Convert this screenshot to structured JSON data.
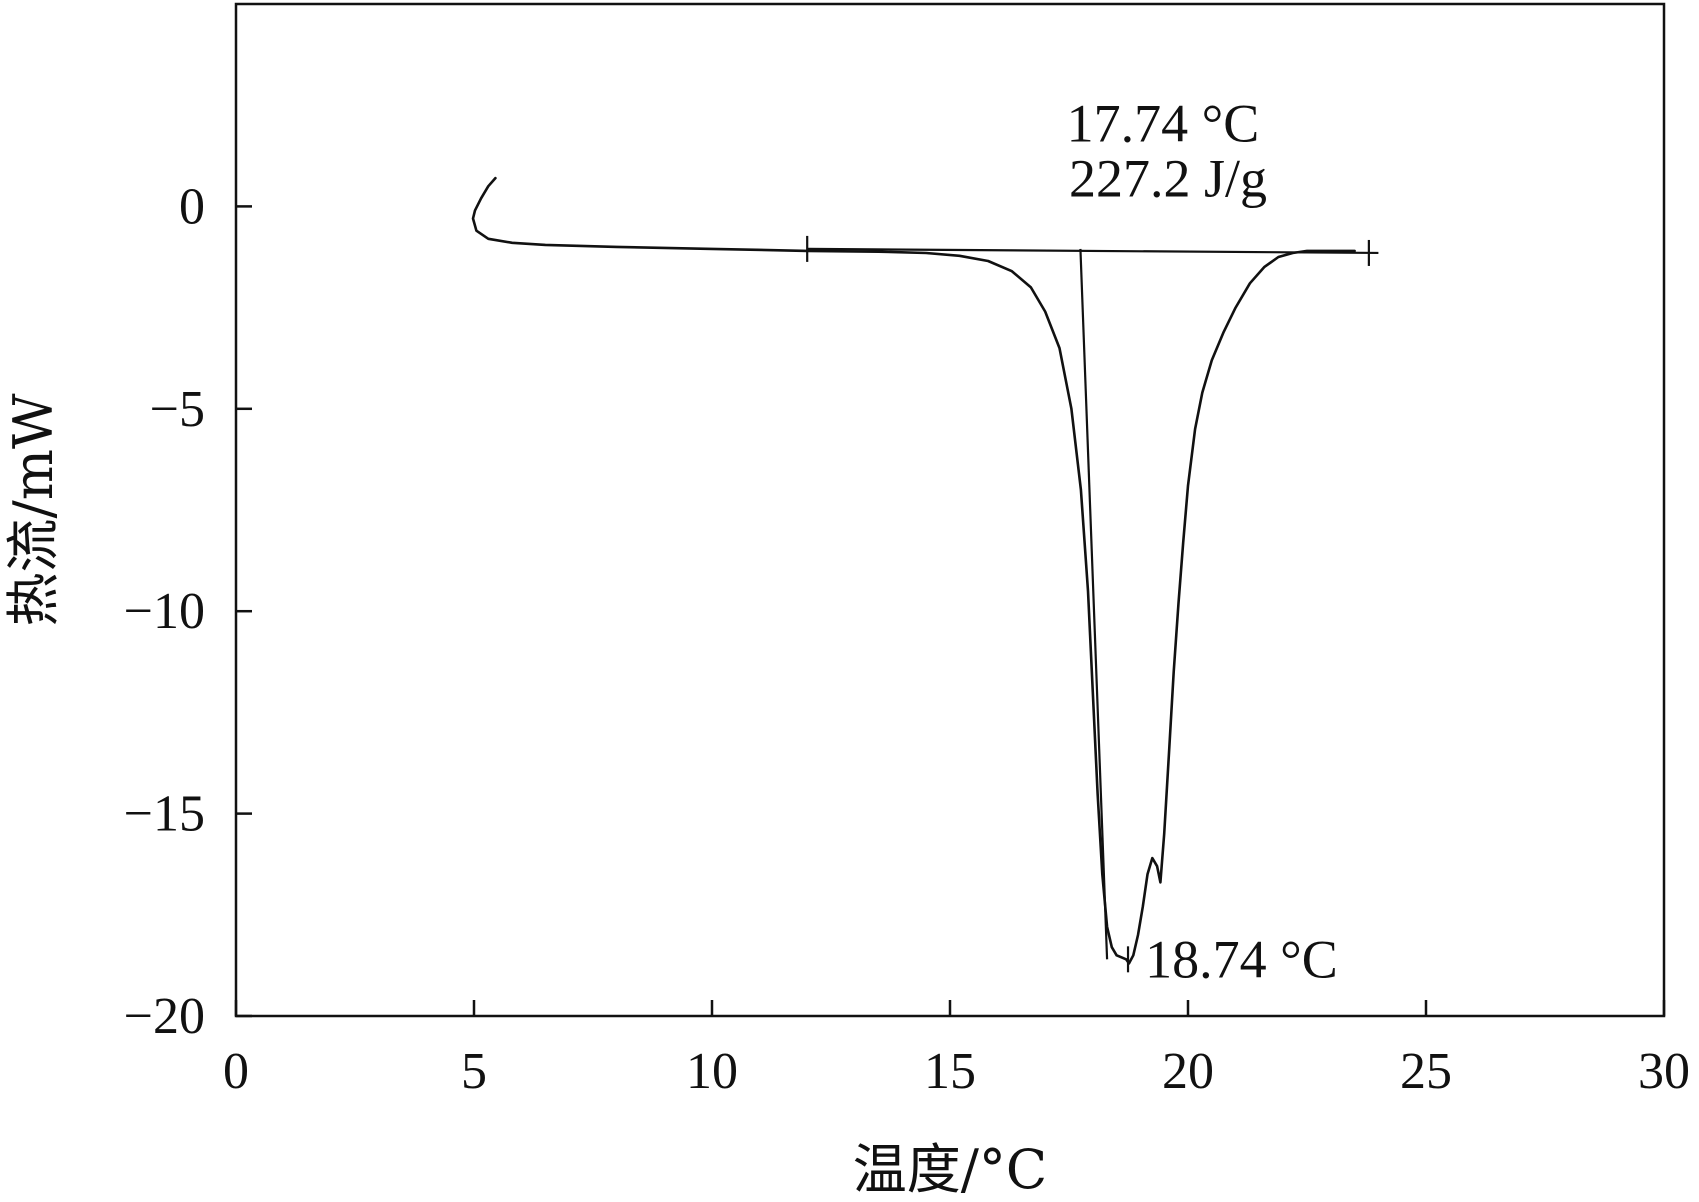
{
  "chart_data": {
    "type": "line",
    "xlabel": "温度/°C",
    "ylabel": "热流/mW",
    "xlim": [
      0,
      30
    ],
    "ylim": [
      -20,
      5
    ],
    "xticks": [
      0,
      5,
      10,
      15,
      20,
      25,
      30
    ],
    "yticks": [
      0,
      -5,
      -10,
      -15,
      -20
    ],
    "xtick_labels": [
      "0",
      "5",
      "10",
      "15",
      "20",
      "25",
      "30"
    ],
    "ytick_labels": [
      "0",
      "−5",
      "−10",
      "−15",
      "−20"
    ],
    "grid": false,
    "series": [
      {
        "x": [
          5.45,
          5.3,
          5.15,
          5.02,
          4.98,
          5.05,
          5.3,
          5.8,
          6.5,
          8,
          10,
          12,
          13.5,
          14.5,
          15.2,
          15.8,
          16.3,
          16.7,
          17.0,
          17.3,
          17.55,
          17.75,
          17.9,
          18.0,
          18.1,
          18.2,
          18.3,
          18.4,
          18.5,
          18.6,
          18.7,
          18.76,
          18.85,
          18.95,
          19.05,
          19.15,
          19.25,
          19.35,
          19.42,
          19.5,
          19.6,
          19.7,
          19.8,
          19.9,
          20.0,
          20.15,
          20.3,
          20.5,
          20.75,
          21.0,
          21.3,
          21.6,
          21.9,
          22.2,
          22.5,
          23.0,
          23.5
        ],
        "y": [
          0.7,
          0.5,
          0.2,
          -0.1,
          -0.3,
          -0.6,
          -0.8,
          -0.9,
          -0.95,
          -1.0,
          -1.05,
          -1.1,
          -1.12,
          -1.15,
          -1.22,
          -1.35,
          -1.6,
          -2.0,
          -2.6,
          -3.5,
          -5.0,
          -7.0,
          -9.5,
          -12.0,
          -14.5,
          -16.5,
          -17.8,
          -18.3,
          -18.5,
          -18.55,
          -18.6,
          -18.7,
          -18.5,
          -18.0,
          -17.3,
          -16.5,
          -16.1,
          -16.3,
          -16.7,
          -15.5,
          -13.5,
          -11.5,
          -9.8,
          -8.3,
          -6.9,
          -5.5,
          -4.6,
          -3.8,
          -3.1,
          -2.5,
          -1.9,
          -1.5,
          -1.25,
          -1.15,
          -1.1,
          -1.1,
          -1.1
        ]
      }
    ],
    "baseline": {
      "x": [
        12.0,
        24.0
      ],
      "y": [
        -1.05,
        -1.15
      ]
    },
    "markers": [
      {
        "x": 12.0,
        "y": -1.05
      },
      {
        "x": 23.8,
        "y": -1.15
      },
      {
        "x": 18.74,
        "y": -18.6
      }
    ],
    "onset_line": {
      "x": [
        17.74,
        18.3
      ],
      "y": [
        -1.05,
        -18.6
      ]
    },
    "annotations": [
      {
        "text": "17.74 °C",
        "x": 17.45,
        "y": 1.6
      },
      {
        "text": "227.2 J/g",
        "x": 17.5,
        "y": 0.25
      },
      {
        "text": "18.74 °C",
        "x": 19.1,
        "y": -19.05
      }
    ]
  }
}
